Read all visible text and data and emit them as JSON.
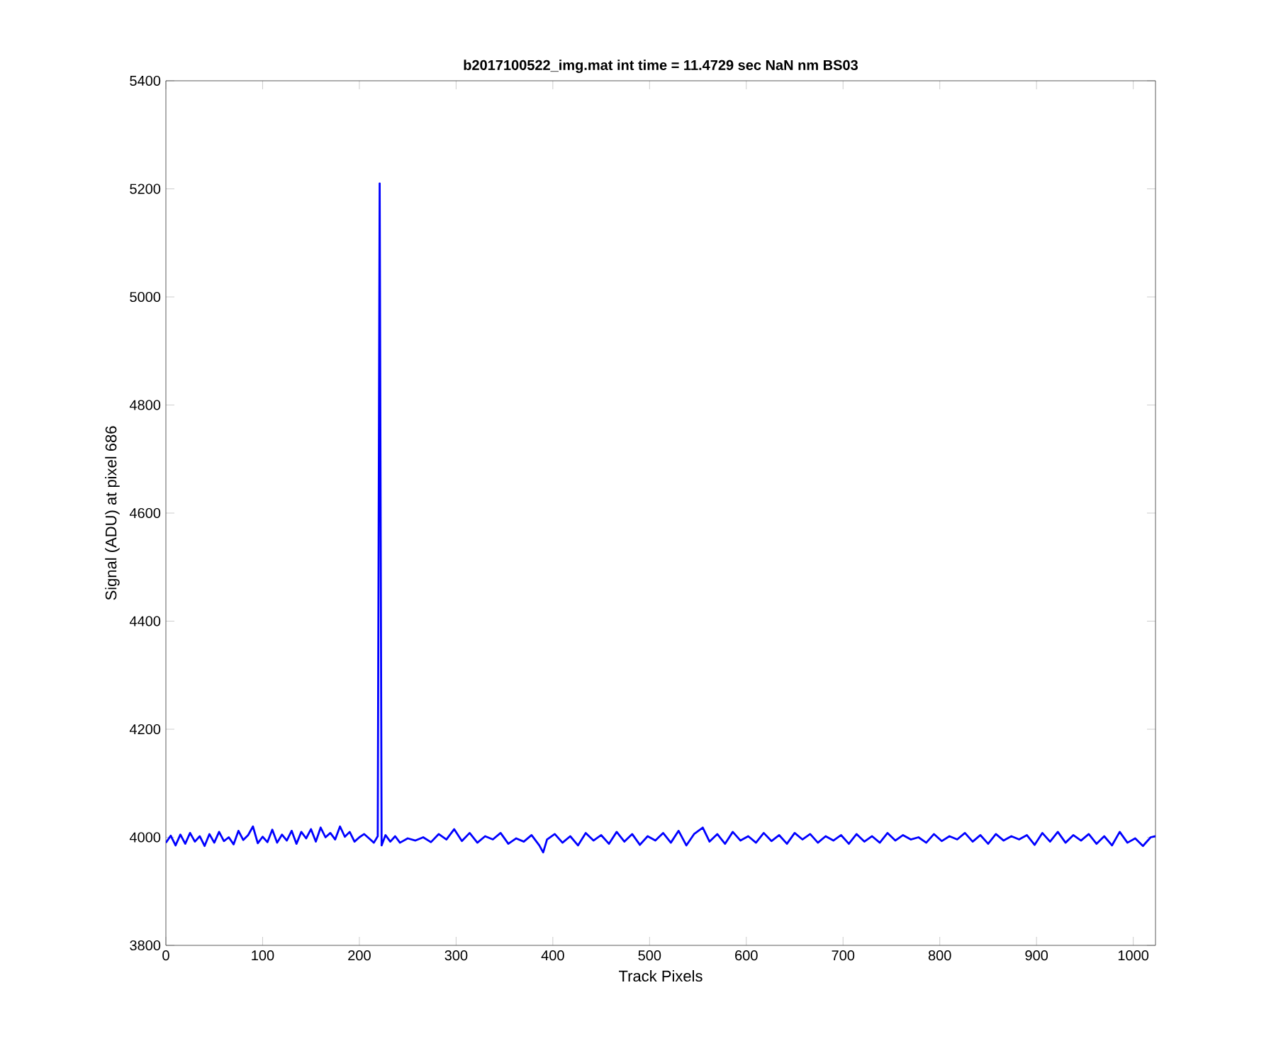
{
  "chart_data": {
    "type": "line",
    "title": "b2017100522_img.mat int time = 11.4729 sec  NaN nm BS03",
    "xlabel": "Track Pixels",
    "ylabel": "Signal (ADU) at pixel 686",
    "x": [
      0,
      5,
      10,
      15,
      20,
      25,
      30,
      35,
      40,
      45,
      50,
      55,
      60,
      65,
      70,
      75,
      80,
      85,
      90,
      95,
      100,
      105,
      110,
      115,
      120,
      125,
      130,
      135,
      140,
      145,
      150,
      155,
      160,
      165,
      170,
      175,
      180,
      185,
      190,
      195,
      200,
      205,
      210,
      215,
      219,
      221,
      223,
      227,
      232,
      237,
      242,
      250,
      258,
      266,
      274,
      282,
      290,
      298,
      306,
      314,
      322,
      330,
      338,
      346,
      354,
      362,
      370,
      378,
      386,
      390,
      394,
      402,
      410,
      418,
      426,
      434,
      442,
      450,
      458,
      466,
      474,
      482,
      490,
      498,
      506,
      514,
      522,
      530,
      538,
      546,
      555,
      562,
      570,
      578,
      586,
      594,
      602,
      610,
      618,
      626,
      634,
      642,
      650,
      658,
      666,
      674,
      682,
      690,
      698,
      706,
      714,
      722,
      730,
      738,
      746,
      754,
      762,
      770,
      778,
      786,
      794,
      802,
      810,
      818,
      826,
      834,
      842,
      850,
      858,
      866,
      874,
      882,
      890,
      898,
      906,
      914,
      922,
      930,
      938,
      946,
      954,
      962,
      970,
      978,
      986,
      994,
      1002,
      1010,
      1018,
      1023
    ],
    "series": [
      {
        "color": "#0000ff",
        "values": [
          3990,
          4003,
          3985,
          4005,
          3988,
          4008,
          3992,
          4002,
          3984,
          4006,
          3990,
          4010,
          3993,
          4000,
          3987,
          4012,
          3995,
          4004,
          4020,
          3989,
          4001,
          3991,
          4014,
          3990,
          4005,
          3994,
          4012,
          3988,
          4010,
          3998,
          4015,
          3992,
          4018,
          4000,
          4008,
          3996,
          4020,
          4001,
          4010,
          3992,
          4000,
          4006,
          3998,
          3990,
          4002,
          5210,
          3985,
          4004,
          3992,
          4002,
          3990,
          3998,
          3994,
          4000,
          3991,
          4006,
          3996,
          4015,
          3993,
          4008,
          3990,
          4002,
          3996,
          4008,
          3988,
          3998,
          3992,
          4004,
          3985,
          3972,
          3996,
          4006,
          3990,
          4002,
          3985,
          4008,
          3994,
          4004,
          3988,
          4010,
          3992,
          4006,
          3986,
          4002,
          3994,
          4008,
          3990,
          4012,
          3985,
          4006,
          4018,
          3992,
          4006,
          3988,
          4010,
          3994,
          4002,
          3990,
          4008,
          3993,
          4004,
          3988,
          4008,
          3996,
          4006,
          3990,
          4002,
          3994,
          4004,
          3988,
          4006,
          3992,
          4002,
          3990,
          4008,
          3994,
          4004,
          3996,
          4000,
          3990,
          4006,
          3993,
          4002,
          3996,
          4008,
          3992,
          4004,
          3988,
          4006,
          3994,
          4002,
          3996,
          4004,
          3986,
          4008,
          3992,
          4010,
          3990,
          4004,
          3994,
          4006,
          3988,
          4002,
          3985,
          4010,
          3990,
          3998,
          3984,
          4000,
          4002
        ]
      }
    ],
    "xlim": [
      0,
      1023
    ],
    "ylim": [
      3800,
      5400
    ],
    "xticks": [
      0,
      100,
      200,
      300,
      400,
      500,
      600,
      700,
      800,
      900,
      1000
    ],
    "yticks": [
      3800,
      4000,
      4200,
      4400,
      4600,
      4800,
      5000,
      5200,
      5400
    ],
    "grid": false,
    "marker": "none",
    "line_style": "solid"
  }
}
